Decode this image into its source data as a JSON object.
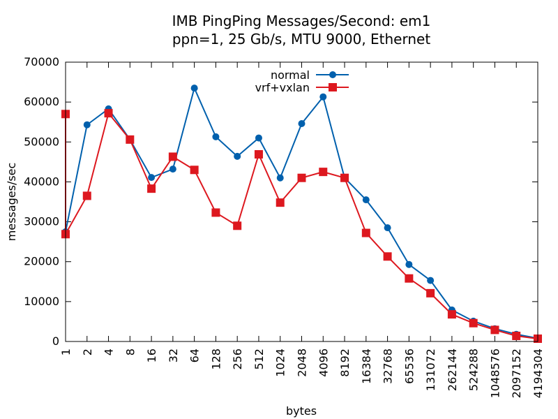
{
  "chart_data": {
    "type": "line",
    "title": "IMB PingPing Messages/Second: em1",
    "subtitle": "ppn=1, 25 Gb/s, MTU 9000, Ethernet",
    "xlabel": "bytes",
    "ylabel": "messages/sec",
    "x_scale": "log2",
    "categories": [
      "0",
      "1",
      "2",
      "4",
      "8",
      "16",
      "32",
      "64",
      "128",
      "256",
      "512",
      "1024",
      "2048",
      "4096",
      "8192",
      "16384",
      "32768",
      "65536",
      "131072",
      "262144",
      "524288",
      "1048576",
      "2097152",
      "4194304"
    ],
    "xtick_labels": [
      "1",
      "2",
      "4",
      "8",
      "16",
      "32",
      "64",
      "128",
      "256",
      "512",
      "1024",
      "2048",
      "4096",
      "8192",
      "16384",
      "32768",
      "65536",
      "131072",
      "262144",
      "524288",
      "1048576",
      "2097152",
      "4194304"
    ],
    "ylim": [
      0,
      70000
    ],
    "ytick_labels": [
      "0",
      "10000",
      "20000",
      "30000",
      "40000",
      "50000",
      "60000",
      "70000"
    ],
    "legend_position": "top-center",
    "series": [
      {
        "name": "normal",
        "color": "#0060ad",
        "marker": "circle",
        "values": [
          57000,
          27500,
          54300,
          58300,
          50600,
          41100,
          43200,
          63500,
          51300,
          46400,
          51000,
          41000,
          54600,
          61300,
          41000,
          35500,
          28500,
          19300,
          15300,
          7900,
          5100,
          3200,
          1800,
          800
        ]
      },
      {
        "name": "vrf+vxlan",
        "color": "#dd181f",
        "marker": "square",
        "values": [
          57000,
          26900,
          36500,
          57200,
          50600,
          38300,
          46300,
          43000,
          32300,
          29000,
          46900,
          34800,
          41000,
          42500,
          41000,
          27200,
          21300,
          15800,
          12100,
          6800,
          4600,
          2900,
          1400,
          700
        ]
      }
    ]
  }
}
